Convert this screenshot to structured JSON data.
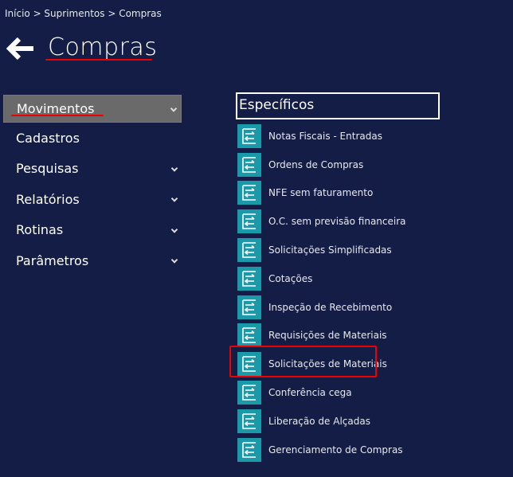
{
  "breadcrumb": "Início > Suprimentos > Compras",
  "page_title": "Compras",
  "menu": [
    {
      "label": "Movimentos",
      "chevron": true,
      "active": true
    },
    {
      "label": "Cadastros",
      "chevron": false
    },
    {
      "label": "Pesquisas",
      "chevron": true
    },
    {
      "label": "Relatórios",
      "chevron": true
    },
    {
      "label": "Rotinas",
      "chevron": true
    },
    {
      "label": "Parâmetros",
      "chevron": true
    }
  ],
  "section_title": "Específicos",
  "items": [
    "Notas Fiscais - Entradas",
    "Ordens de Compras",
    "NFE sem faturamento",
    "O.C. sem previsão financeira",
    "Solicitações  Simplificadas",
    "Cotações",
    "Inspeção de Recebimento",
    "Requisições de Materiais",
    "Solicitações de Materiais",
    "Conferência cega",
    "Liberação de Alçadas",
    "Gerenciamento de Compras"
  ],
  "highlighted_item": "Solicitações de Materiais",
  "colors": {
    "background": "#131d45",
    "icon": "#1a9aa8",
    "highlight": "#e00000",
    "active_menu": "#6a6a6a"
  }
}
